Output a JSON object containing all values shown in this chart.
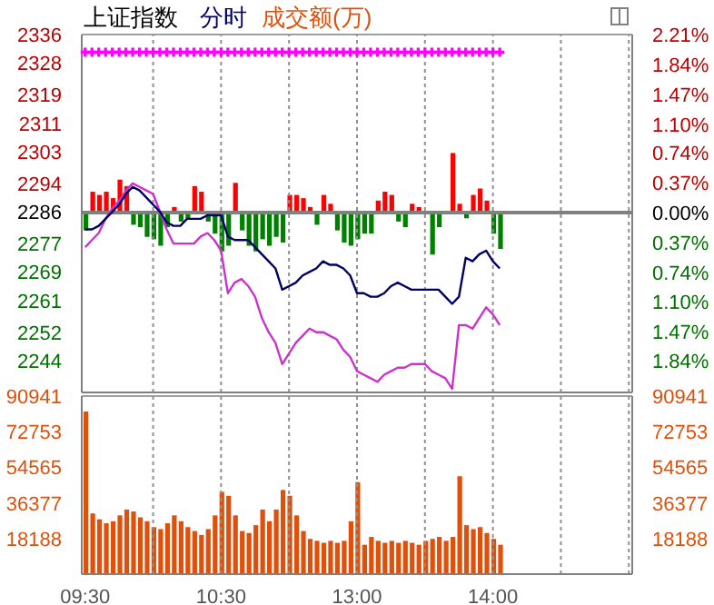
{
  "chart_data": [
    {
      "type": "line",
      "title": "上证指数",
      "legend": "top left",
      "grid": true,
      "tick_labels": "y",
      "categories": [
        null,
        null,
        null,
        null,
        null,
        null,
        null,
        null,
        null,
        null,
        null,
        null,
        null,
        null,
        null,
        null,
        null,
        null,
        null,
        null,
        null,
        null,
        null,
        null,
        null,
        null,
        null,
        null,
        null,
        null,
        null,
        null,
        null,
        null,
        null,
        null,
        null,
        null,
        null,
        null,
        null,
        null,
        null,
        null,
        null,
        null,
        null,
        null,
        null,
        null,
        null,
        null,
        null,
        null,
        null,
        null,
        null,
        null,
        null,
        null,
        null,
        null,
        null,
        null,
        null,
        null,
        null,
        null,
        null,
        null,
        null,
        null,
        null,
        null,
        null,
        null,
        null,
        null,
        null,
        null,
        null
      ],
      "ylim": [
        2235,
        2336
      ],
      "yticks": [
        2244,
        2252,
        2261,
        2269,
        2277,
        2286,
        2294,
        2303,
        2311,
        2319,
        2328,
        2336
      ],
      "y2lim": [
        -2.23,
        2.21
      ],
      "y2ticks": [
        {
          "value": -1.84,
          "label": "1.84%"
        },
        {
          "value": -1.47,
          "label": "1.47%"
        },
        {
          "value": -1.1,
          "label": "1.10%"
        },
        {
          "value": -0.74,
          "label": "0.74%"
        },
        {
          "value": -0.37,
          "label": "0.37%"
        },
        {
          "value": 0,
          "label": "0.00%"
        },
        {
          "value": 0.37,
          "label": "0.37%"
        },
        {
          "value": 0.74,
          "label": "0.74%"
        },
        {
          "value": 1.1,
          "label": "1.10%"
        },
        {
          "value": 1.47,
          "label": "1.47%"
        },
        {
          "value": 1.84,
          "label": "1.84%"
        },
        {
          "value": 2.21,
          "label": "2.21%"
        }
      ],
      "ref_lines": [
        {
          "axis": "y2",
          "value": 0,
          "color": "#808080"
        }
      ],
      "series": [
        {
          "type": "bar",
          "axis": "y2",
          "values": [
            -0.22,
            0.26,
            0.22,
            0.26,
            0.18,
            0.41,
            0.33,
            -0.15,
            -0.18,
            -0.3,
            -0.33,
            -0.41,
            -0.18,
            0.07,
            -0.11,
            -0.07,
            0.33,
            0.26,
            -0.11,
            -0.26,
            -0.48,
            -0.41,
            0.37,
            -0.22,
            -0.41,
            -0.48,
            -0.33,
            -0.41,
            -0.3,
            -0.37,
            0.22,
            0.22,
            0.18,
            0.07,
            -0.15,
            0.22,
            0.11,
            -0.22,
            -0.37,
            -0.41,
            -0.33,
            -0.26,
            -0.26,
            0.15,
            0.26,
            0.22,
            -0.11,
            -0.18,
            0.11,
            0.07,
            null,
            -0.52,
            -0.18,
            null,
            0.74,
            0.11,
            -0.07,
            0.22,
            0.3,
            0.15,
            -0.26,
            -0.45,
            null,
            null,
            null,
            null,
            null,
            null,
            null,
            null,
            null,
            null,
            null,
            null,
            null,
            null,
            null,
            null,
            null,
            null,
            null
          ],
          "colors": [
            "#008000",
            "#ff0000",
            "#ff0000",
            "#ff0000",
            "#ff0000",
            "#ff0000",
            "#ff0000",
            "#008000",
            "#008000",
            "#008000",
            "#008000",
            "#008000",
            "#008000",
            "#ff0000",
            "#008000",
            "#008000",
            "#ff0000",
            "#ff0000",
            "#008000",
            "#008000",
            "#008000",
            "#008000",
            "#ff0000",
            "#008000",
            "#008000",
            "#008000",
            "#008000",
            "#008000",
            "#008000",
            "#008000",
            "#ff0000",
            "#ff0000",
            "#ff0000",
            "#ff0000",
            "#008000",
            "#ff0000",
            "#ff0000",
            "#008000",
            "#008000",
            "#008000",
            "#008000",
            "#008000",
            "#008000",
            "#ff0000",
            "#ff0000",
            "#ff0000",
            "#008000",
            "#008000",
            "#ff0000",
            "#ff0000",
            null,
            "#008000",
            "#008000",
            null,
            "#ff0000",
            "#ff0000",
            "#008000",
            "#ff0000",
            "#ff0000",
            "#ff0000",
            "#008000",
            "#008000",
            null,
            null,
            null,
            null,
            null,
            null,
            null,
            null,
            null,
            null,
            null,
            null,
            null,
            null,
            null,
            null,
            null,
            null,
            null
          ]
        },
        {
          "color": "#cc33cc",
          "values": [
            2276,
            2278,
            2280,
            2284,
            2287,
            2289,
            2292,
            2294,
            2293,
            2292,
            2291,
            2286,
            2281,
            2277,
            2277,
            2277,
            2277,
            2279,
            2280,
            2278,
            2275,
            2263,
            2266,
            2267,
            2265,
            2262,
            2256,
            2252,
            2249,
            2243,
            2246,
            2249,
            2251,
            2253,
            2252,
            2252,
            2251,
            2250,
            2247,
            2245,
            2241,
            2240,
            2239,
            2238,
            2240,
            2241,
            2242,
            2242,
            2243,
            2243,
            2243,
            2241,
            2240,
            2239,
            2236,
            2254,
            2254,
            2253,
            2256,
            2259,
            2257,
            2254,
            null,
            null,
            null,
            null,
            null,
            null,
            null,
            null,
            null,
            null,
            null,
            null,
            null,
            null,
            null,
            null,
            null,
            null,
            null
          ]
        },
        {
          "name": "分时",
          "color": "#000066",
          "values": [
            2281,
            2281,
            2282,
            2284,
            2286,
            2288,
            2291,
            2293,
            2292,
            2290,
            2288,
            2286,
            2283,
            2282,
            2282,
            2284,
            2284,
            2284,
            2285,
            2285,
            2285,
            2279,
            2278,
            2278,
            2278,
            2276,
            2274,
            2272,
            2270,
            2264,
            2265,
            2266,
            2268,
            2269,
            2270,
            2272,
            2271,
            2271,
            2270,
            2268,
            2263,
            2263,
            2262,
            2262,
            2263,
            2265,
            2266,
            2265,
            2264,
            2264,
            2264,
            2264,
            2264,
            2262,
            2260,
            2262,
            2273,
            2272,
            2274,
            2275,
            2272,
            2270,
            null,
            null,
            null,
            null,
            null,
            null,
            null,
            null,
            null,
            null,
            null,
            null,
            null,
            null,
            null,
            null,
            null,
            null,
            null
          ]
        },
        {
          "type": "scatter",
          "marker": "cross",
          "color": "#ff00ff",
          "values": [
            2331,
            2331,
            2331,
            2331,
            2331,
            2331,
            2331,
            2331,
            2331,
            2331,
            2331,
            2331,
            2331,
            2331,
            2331,
            2331,
            2331,
            2331,
            2331,
            2331,
            2331,
            2331,
            2331,
            2331,
            2331,
            2331,
            2331,
            2331,
            2331,
            2331,
            2331,
            2331,
            2331,
            2331,
            2331,
            2331,
            2331,
            2331,
            2331,
            2331,
            2331,
            2331,
            2331,
            2331,
            2331,
            2331,
            2331,
            2331,
            2331,
            2331,
            2331,
            2331,
            2331,
            2331,
            2331,
            2331,
            2331,
            2331,
            2331,
            2331,
            2331,
            2331,
            null,
            null,
            null,
            null,
            null,
            null,
            null,
            null,
            null,
            null,
            null,
            null,
            null,
            null,
            null,
            null,
            null,
            null,
            null
          ]
        }
      ]
    },
    {
      "type": "bar",
      "legend": "top left",
      "grid": true,
      "categories": [
        "09:30",
        null,
        null,
        null,
        null,
        null,
        null,
        null,
        null,
        null,
        null,
        null,
        null,
        null,
        null,
        null,
        null,
        null,
        null,
        null,
        "10:30",
        null,
        null,
        null,
        null,
        null,
        null,
        null,
        null,
        null,
        null,
        null,
        null,
        null,
        null,
        null,
        null,
        null,
        null,
        null,
        "13:00",
        null,
        null,
        null,
        null,
        null,
        null,
        null,
        null,
        null,
        null,
        null,
        null,
        null,
        null,
        null,
        null,
        null,
        null,
        null,
        "14:00",
        null,
        null,
        null,
        null,
        null,
        null,
        null,
        null,
        null,
        null,
        null,
        null,
        null,
        null,
        null,
        null,
        null,
        null,
        null,
        null
      ],
      "ylim": [
        0,
        90941
      ],
      "yticks": [
        18188,
        36377,
        54565,
        72753,
        90941
      ],
      "y2lim": [
        0,
        90941
      ],
      "y2ticks": [
        18188,
        36377,
        54565,
        72753,
        90941
      ],
      "series": [
        {
          "name": "成交额(万)",
          "color": "#e0500a",
          "values": [
            83000,
            31000,
            28000,
            26000,
            27000,
            30000,
            33000,
            32000,
            29000,
            27000,
            24000,
            23000,
            26000,
            30000,
            27000,
            24000,
            22000,
            20000,
            23000,
            30000,
            42000,
            40000,
            30000,
            22000,
            21000,
            25000,
            33000,
            27000,
            33000,
            43000,
            40000,
            30000,
            22000,
            18000,
            17000,
            16000,
            17000,
            16000,
            17000,
            27000,
            47000,
            15000,
            19000,
            17000,
            16000,
            17000,
            16000,
            17000,
            16000,
            15000,
            17000,
            18000,
            19000,
            17000,
            19000,
            50000,
            25000,
            23000,
            24000,
            21000,
            18000,
            15000,
            null,
            null,
            null,
            null,
            null,
            null,
            null,
            null,
            null,
            null,
            null,
            null,
            null,
            null,
            null,
            null,
            null,
            null,
            null
          ]
        }
      ]
    }
  ]
}
